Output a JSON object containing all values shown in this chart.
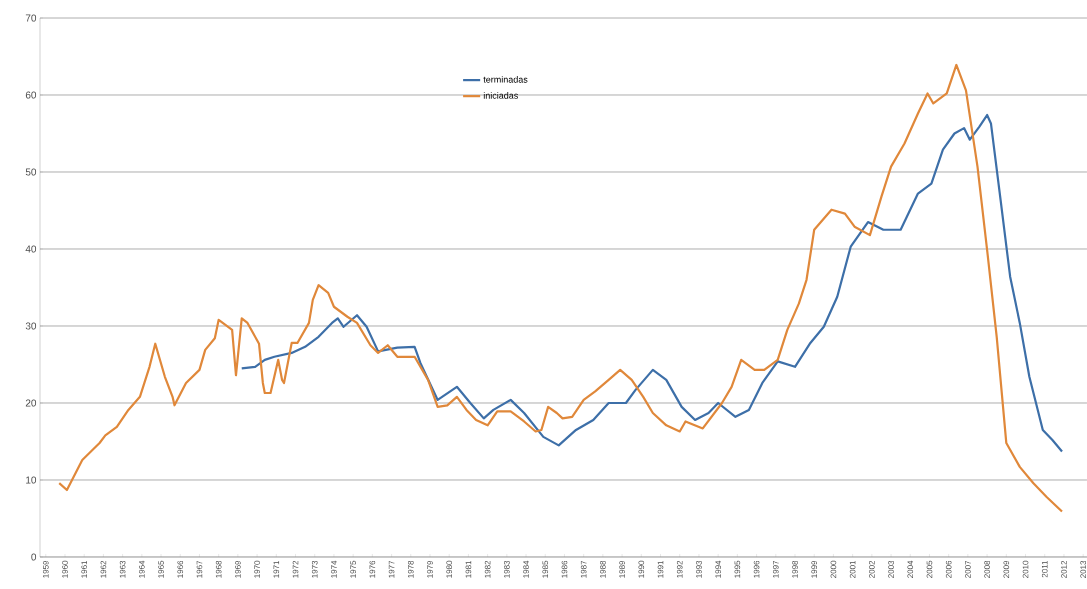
{
  "chart_data": {
    "type": "line",
    "xlim": [
      1958.7,
      2013.2
    ],
    "xticks": [
      1959,
      1960,
      1961,
      1962,
      1963,
      1964,
      1965,
      1966,
      1967,
      1968,
      1969,
      1970,
      1971,
      1972,
      1973,
      1974,
      1975,
      1976,
      1977,
      1978,
      1979,
      1980,
      1981,
      1982,
      1983,
      1984,
      1985,
      1986,
      1987,
      1988,
      1989,
      1990,
      1991,
      1992,
      1993,
      1994,
      1995,
      1996,
      1997,
      1998,
      1999,
      2000,
      2001,
      2002,
      2003,
      2004,
      2005,
      2006,
      2007,
      2008,
      2009,
      2010,
      2011,
      2012,
      2013
    ],
    "ylim": [
      0,
      70
    ],
    "yticks": [
      0,
      10,
      20,
      30,
      40,
      50,
      60,
      70
    ],
    "grid": "y",
    "legend": "top",
    "series": [
      {
        "name": "terminadas",
        "color": "#3d6fa8",
        "x": [
          1969.2,
          1969.9,
          1970.4,
          1970.9,
          1971.8,
          1972.5,
          1973.2,
          1973.9,
          1974.2,
          1974.5,
          1975.2,
          1975.7,
          1976.3,
          1977.3,
          1978.2,
          1978.5,
          1979.4,
          1980.4,
          1981.1,
          1981.8,
          1982.3,
          1983.2,
          1983.9,
          1984.9,
          1985.7,
          1986.6,
          1987.5,
          1988.3,
          1989.2,
          1989.7,
          1990.6,
          1991.3,
          1992.1,
          1992.8,
          1993.5,
          1994.0,
          1994.9,
          1995.6,
          1996.3,
          1997.1,
          1998.0,
          1998.8,
          1999.5,
          2000.2,
          2000.9,
          2001.8,
          2002.6,
          2003.5,
          2004.4,
          2005.1,
          2005.7,
          2006.3,
          2006.8,
          2007.1,
          2007.6,
          2008.0,
          2008.2,
          2008.7,
          2009.2,
          2009.7,
          2010.2,
          2010.9,
          2011.4,
          2011.9
        ],
        "values": [
          24.5,
          24.7,
          25.6,
          26.0,
          26.5,
          27.3,
          28.6,
          30.4,
          31.0,
          29.9,
          31.4,
          29.9,
          26.7,
          27.2,
          27.3,
          25.2,
          20.4,
          22.1,
          20.0,
          18.0,
          19.1,
          20.4,
          18.7,
          15.6,
          14.5,
          16.5,
          17.8,
          20.0,
          20.0,
          21.7,
          24.3,
          23.0,
          19.5,
          17.8,
          18.7,
          20.0,
          18.2,
          19.1,
          22.6,
          25.4,
          24.7,
          27.8,
          29.9,
          33.8,
          40.3,
          43.5,
          42.5,
          42.5,
          47.2,
          48.5,
          52.9,
          55.0,
          55.7,
          54.2,
          55.9,
          57.4,
          56.3,
          46.4,
          36.4,
          30.4,
          23.4,
          16.5,
          15.2,
          13.7
        ]
      },
      {
        "name": "iniciadas",
        "color": "#e0883a",
        "x": [
          1959.7,
          1960.1,
          1960.9,
          1961.8,
          1962.1,
          1962.7,
          1963.3,
          1963.9,
          1964.4,
          1964.7,
          1965.2,
          1965.6,
          1965.7,
          1966.3,
          1967.0,
          1967.3,
          1967.8,
          1968.0,
          1968.7,
          1968.9,
          1969.2,
          1969.5,
          1970.1,
          1970.3,
          1970.4,
          1970.7,
          1971.1,
          1971.3,
          1971.4,
          1971.8,
          1972.1,
          1972.7,
          1972.9,
          1973.2,
          1973.7,
          1974.0,
          1974.7,
          1975.2,
          1975.9,
          1976.3,
          1976.8,
          1977.3,
          1978.2,
          1978.9,
          1979.4,
          1979.9,
          1980.4,
          1980.9,
          1981.4,
          1982.0,
          1982.5,
          1983.2,
          1983.9,
          1984.5,
          1984.8,
          1985.15,
          1985.6,
          1985.9,
          1986.4,
          1987.0,
          1987.6,
          1988.3,
          1988.9,
          1989.5,
          1990.1,
          1990.6,
          1991.3,
          1992.0,
          1992.3,
          1993.2,
          1994.2,
          1994.7,
          1995.2,
          1995.9,
          1996.4,
          1997.1,
          1997.6,
          1998.2,
          1998.6,
          1999.0,
          1999.9,
          2000.6,
          2001.1,
          2001.9,
          2002.5,
          2003.0,
          2003.7,
          2004.4,
          2004.9,
          2005.2,
          2005.9,
          2006.4,
          2006.9,
          2007.5,
          2008.0,
          2008.5,
          2009.0,
          2009.7,
          2010.4,
          2011.1,
          2011.9
        ],
        "values": [
          9.6,
          8.7,
          12.6,
          14.8,
          15.8,
          16.9,
          19.1,
          20.8,
          24.7,
          27.7,
          23.4,
          20.8,
          19.7,
          22.6,
          24.3,
          26.9,
          28.4,
          30.8,
          29.5,
          23.6,
          31.0,
          30.4,
          27.7,
          22.6,
          21.3,
          21.3,
          25.6,
          23.0,
          22.6,
          27.8,
          27.8,
          30.4,
          33.4,
          35.3,
          34.3,
          32.5,
          31.2,
          30.4,
          27.5,
          26.5,
          27.5,
          26.0,
          26.0,
          23.0,
          19.5,
          19.7,
          20.8,
          19.1,
          17.8,
          17.1,
          18.9,
          18.9,
          17.6,
          16.3,
          16.5,
          19.5,
          18.7,
          18.0,
          18.2,
          20.4,
          21.5,
          23.0,
          24.3,
          23.0,
          20.8,
          18.7,
          17.1,
          16.3,
          17.6,
          16.7,
          20.0,
          22.1,
          25.6,
          24.3,
          24.3,
          25.6,
          29.5,
          32.9,
          36.0,
          42.5,
          45.1,
          44.6,
          42.9,
          41.8,
          46.8,
          50.7,
          53.7,
          57.6,
          60.2,
          58.9,
          60.2,
          63.9,
          60.6,
          50.7,
          39.9,
          28.6,
          14.8,
          11.7,
          9.6,
          7.8,
          5.9
        ]
      }
    ]
  }
}
